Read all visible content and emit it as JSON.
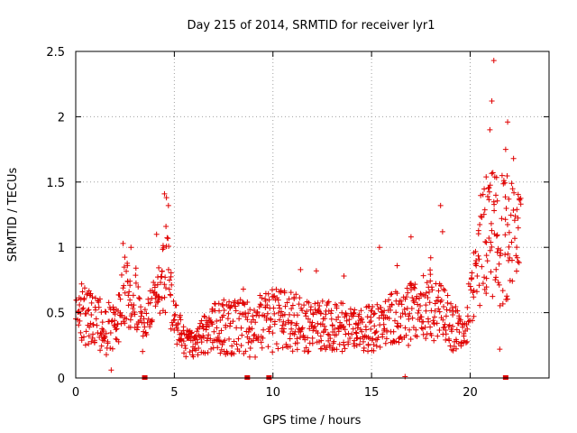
{
  "chart_data": {
    "type": "scatter",
    "marker": "plus",
    "color": "#e00000",
    "title": "Day 215 of 2014, SRMTID for receiver lyr1",
    "xlabel": "GPS time / hours",
    "ylabel": "SRMTID / TECUs",
    "xlim": [
      0,
      24
    ],
    "ylim": [
      0,
      2.5
    ],
    "xticks": [
      0,
      5,
      10,
      15,
      20
    ],
    "yticks": [
      0,
      0.5,
      1,
      1.5,
      2,
      2.5
    ],
    "xtick_labels": [
      "0",
      "5",
      "10",
      "15",
      "20"
    ],
    "ytick_labels": [
      "0",
      "0.5",
      "1",
      "1.5",
      "2",
      "2.5"
    ],
    "grid": true,
    "series": [
      {
        "name": "SRMTID",
        "envelope": [
          {
            "x": 0.0,
            "low": 0.25,
            "high": 0.6
          },
          {
            "x": 0.5,
            "low": 0.25,
            "high": 0.7
          },
          {
            "x": 1.0,
            "low": 0.25,
            "high": 0.65
          },
          {
            "x": 1.5,
            "low": 0.15,
            "high": 0.6
          },
          {
            "x": 2.0,
            "low": 0.2,
            "high": 0.55
          },
          {
            "x": 2.5,
            "low": 0.35,
            "high": 0.95
          },
          {
            "x": 3.0,
            "low": 0.35,
            "high": 0.9
          },
          {
            "x": 3.4,
            "low": 0.2,
            "high": 0.45
          },
          {
            "x": 3.8,
            "low": 0.4,
            "high": 0.75
          },
          {
            "x": 4.2,
            "low": 0.45,
            "high": 0.85
          },
          {
            "x": 4.6,
            "low": 0.5,
            "high": 1.25
          },
          {
            "x": 5.0,
            "low": 0.3,
            "high": 0.6
          },
          {
            "x": 5.5,
            "low": 0.15,
            "high": 0.4
          },
          {
            "x": 6.0,
            "low": 0.15,
            "high": 0.35
          },
          {
            "x": 7.0,
            "low": 0.2,
            "high": 0.6
          },
          {
            "x": 8.0,
            "low": 0.15,
            "high": 0.6
          },
          {
            "x": 9.0,
            "low": 0.15,
            "high": 0.6
          },
          {
            "x": 10.0,
            "low": 0.2,
            "high": 0.7
          },
          {
            "x": 11.0,
            "low": 0.2,
            "high": 0.65
          },
          {
            "x": 12.0,
            "low": 0.2,
            "high": 0.6
          },
          {
            "x": 13.0,
            "low": 0.2,
            "high": 0.6
          },
          {
            "x": 14.0,
            "low": 0.2,
            "high": 0.55
          },
          {
            "x": 15.0,
            "low": 0.2,
            "high": 0.55
          },
          {
            "x": 16.0,
            "low": 0.2,
            "high": 0.65
          },
          {
            "x": 17.0,
            "low": 0.25,
            "high": 0.75
          },
          {
            "x": 18.0,
            "low": 0.3,
            "high": 0.85
          },
          {
            "x": 19.0,
            "low": 0.2,
            "high": 0.6
          },
          {
            "x": 19.7,
            "low": 0.2,
            "high": 0.45
          },
          {
            "x": 20.2,
            "low": 0.45,
            "high": 1.0
          },
          {
            "x": 20.6,
            "low": 0.55,
            "high": 1.5
          },
          {
            "x": 21.0,
            "low": 0.6,
            "high": 1.6
          },
          {
            "x": 21.5,
            "low": 0.55,
            "high": 1.55
          },
          {
            "x": 22.0,
            "low": 0.6,
            "high": 1.55
          },
          {
            "x": 22.6,
            "low": 0.9,
            "high": 1.4
          }
        ],
        "spikes": [
          {
            "x": 2.4,
            "y": 1.03
          },
          {
            "x": 2.8,
            "y": 1.0
          },
          {
            "x": 4.5,
            "y": 1.41
          },
          {
            "x": 4.6,
            "y": 1.38
          },
          {
            "x": 4.7,
            "y": 1.32
          },
          {
            "x": 4.1,
            "y": 1.1
          },
          {
            "x": 15.4,
            "y": 1.0
          },
          {
            "x": 17.0,
            "y": 1.08
          },
          {
            "x": 18.5,
            "y": 1.32
          },
          {
            "x": 18.6,
            "y": 1.12
          },
          {
            "x": 21.0,
            "y": 1.9
          },
          {
            "x": 21.1,
            "y": 2.12
          },
          {
            "x": 21.2,
            "y": 2.43
          },
          {
            "x": 21.9,
            "y": 1.96
          },
          {
            "x": 21.8,
            "y": 1.75
          },
          {
            "x": 22.2,
            "y": 1.68
          },
          {
            "x": 0.3,
            "y": 0.72
          },
          {
            "x": 8.5,
            "y": 0.68
          },
          {
            "x": 11.4,
            "y": 0.83
          },
          {
            "x": 12.2,
            "y": 0.82
          },
          {
            "x": 13.6,
            "y": 0.78
          },
          {
            "x": 16.3,
            "y": 0.86
          },
          {
            "x": 18.0,
            "y": 0.92
          },
          {
            "x": 1.8,
            "y": 0.06
          },
          {
            "x": 16.7,
            "y": 0.01
          },
          {
            "x": 21.5,
            "y": 0.22
          }
        ],
        "gap_markers_x": [
          3.5,
          8.7,
          9.8,
          21.8
        ]
      }
    ]
  }
}
